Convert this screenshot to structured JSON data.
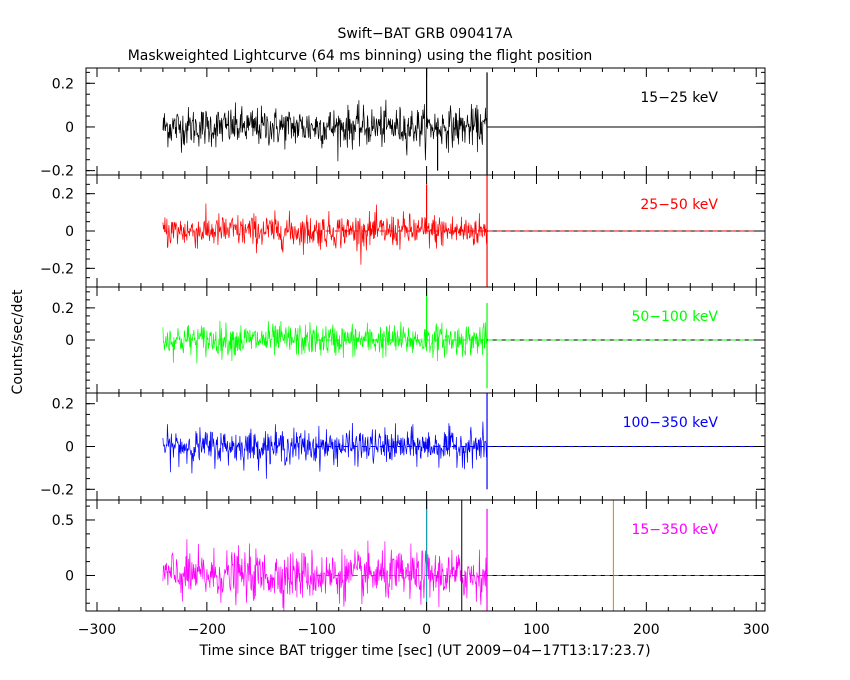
{
  "chart_data": {
    "type": "line",
    "title": "Swift−BAT GRB 090417A",
    "subtitle": "Maskweighted Lightcurve (64 ms binning) using the flight position",
    "xlabel": "Time since BAT trigger time [sec] (UT 2009−04−17T13:17:23.7)",
    "ylabel": "Counts/sec/det",
    "xlim": [
      -310,
      308
    ],
    "x_ticks": [
      -300,
      -200,
      -100,
      0,
      100,
      200,
      300
    ],
    "x_tick_labels": [
      "−300",
      "−200",
      "−100",
      "0",
      "100",
      "200",
      "300"
    ],
    "data_range": [
      -240,
      55
    ],
    "panels": [
      {
        "band": "15−25 keV",
        "color": "#000000",
        "ylim": [
          -0.22,
          0.27
        ],
        "y_ticks": [
          -0.2,
          0,
          0.2
        ],
        "y_tick_labels": [
          "−0.2",
          "0",
          "0.2"
        ],
        "noise_sigma": 0.045,
        "spikes": [
          [
            0,
            0.27
          ],
          [
            55,
            0.25
          ],
          [
            55,
            -0.22
          ],
          [
            10,
            -0.2
          ]
        ]
      },
      {
        "band": "25−50 keV",
        "color": "#ff0000",
        "ylim": [
          -0.3,
          0.3
        ],
        "y_ticks": [
          -0.2,
          0,
          0.2
        ],
        "y_tick_labels": [
          "−0.2",
          "0",
          "0.2"
        ],
        "noise_sigma": 0.045,
        "spikes": [
          [
            0,
            0.25
          ],
          [
            55,
            0.3
          ],
          [
            55,
            -0.3
          ]
        ]
      },
      {
        "band": "50−100 keV",
        "color": "#00ff00",
        "ylim": [
          -0.33,
          0.33
        ],
        "y_ticks": [
          0,
          0.2
        ],
        "y_tick_labels": [
          "0",
          "0.2"
        ],
        "noise_sigma": 0.05,
        "spikes": [
          [
            0,
            0.32
          ],
          [
            55,
            0.23
          ],
          [
            55,
            -0.3
          ]
        ]
      },
      {
        "band": "100−350 keV",
        "color": "#0000ff",
        "ylim": [
          -0.25,
          0.25
        ],
        "y_ticks": [
          -0.2,
          0,
          0.2
        ],
        "y_tick_labels": [
          "−0.2",
          "0",
          "0.2"
        ],
        "noise_sigma": 0.04,
        "spikes": [
          [
            55,
            0.25
          ],
          [
            55,
            -0.2
          ]
        ]
      },
      {
        "band": "15−350 keV",
        "color": "#ff00ff",
        "ylim": [
          -0.32,
          0.68
        ],
        "y_ticks": [
          0,
          0.5
        ],
        "y_tick_labels": [
          "0",
          "0.5"
        ],
        "noise_sigma": 0.11,
        "spikes": [
          [
            0,
            0.68
          ],
          [
            55,
            0.6
          ],
          [
            55,
            -0.32
          ]
        ]
      }
    ],
    "vertical_lines": [
      {
        "x": 0,
        "color": "#00aaaa"
      },
      {
        "x": 32,
        "color": "#000000"
      },
      {
        "x": 170,
        "color": "#cc8800"
      }
    ]
  }
}
